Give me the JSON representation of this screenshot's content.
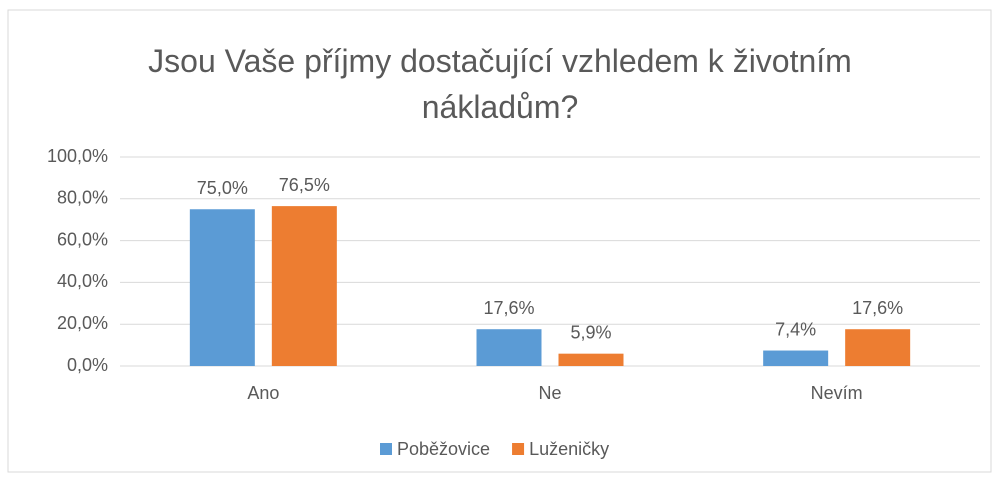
{
  "chart_data": {
    "type": "bar",
    "title": "Jsou Vaše příjmy dostačující vzhledem k životním nákladům?",
    "categories": [
      "Ano",
      "Ne",
      "Nevím"
    ],
    "series": [
      {
        "name": "Poběžovice",
        "color": "#5b9bd5",
        "values": [
          75.0,
          17.6,
          7.4
        ],
        "value_labels": [
          "75,0%",
          "17,6%",
          "7,4%"
        ]
      },
      {
        "name": "Luženičky",
        "color": "#ed7d31",
        "values": [
          76.5,
          5.9,
          17.6
        ],
        "value_labels": [
          "76,5%",
          "5,9%",
          "17,6%"
        ]
      }
    ],
    "ylim": [
      0,
      100
    ],
    "yticks": [
      {
        "value": 0,
        "label": "0,0%"
      },
      {
        "value": 20,
        "label": "20,0%"
      },
      {
        "value": 40,
        "label": "40,0%"
      },
      {
        "value": 60,
        "label": "60,0%"
      },
      {
        "value": 80,
        "label": "80,0%"
      },
      {
        "value": 100,
        "label": "100,0%"
      }
    ],
    "grid": true,
    "legend": "bottom"
  }
}
